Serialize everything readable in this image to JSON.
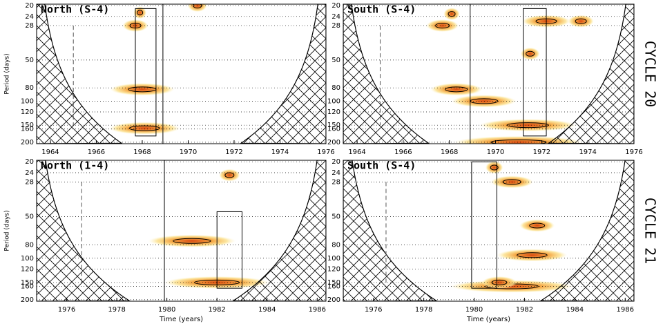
{
  "chart_data": [
    {
      "type": "wavelet",
      "label": "North (S-4)",
      "ylabel": "Period (days)",
      "xlim": [
        1963.4,
        1976
      ],
      "ylim": [
        19.5,
        205
      ],
      "log_y": true,
      "xticks": [
        1964,
        1966,
        1968,
        1970,
        1972,
        1974,
        1976
      ],
      "yticks": [
        20,
        24,
        28,
        50,
        80,
        100,
        120,
        150,
        160,
        200
      ],
      "x": [
        1967.9,
        1967.7,
        1968.0,
        1968.1,
        1970.4
      ],
      "y": [
        22.5,
        28,
        82,
        158,
        20
      ],
      "span": [
        0.4,
        0.8,
        2.0,
        2.2,
        0.6
      ],
      "vlines": [
        1968.9
      ],
      "dashed": [
        1965
      ],
      "boxes": [
        {
          "x": [
            1967.7,
            1968.6
          ],
          "y": [
            21,
            180
          ]
        }
      ]
    },
    {
      "type": "wavelet",
      "label": "South (S-4)",
      "xlim": [
        1963.4,
        1976
      ],
      "ylim": [
        19.5,
        205
      ],
      "log_y": true,
      "xticks": [
        1964,
        1966,
        1968,
        1970,
        1972,
        1974,
        1976
      ],
      "yticks": [
        20,
        24,
        28,
        50,
        80,
        100,
        120,
        150,
        160,
        200
      ],
      "x": [
        1968.1,
        1967.7,
        1968.3,
        1971.5,
        1972.2,
        1973.7,
        1971.4,
        1971.0,
        1969.5
      ],
      "y": [
        23,
        28,
        82,
        45,
        26,
        26,
        150,
        200,
        100
      ],
      "span": [
        0.5,
        1.0,
        1.6,
        0.6,
        1.5,
        0.8,
        3.0,
        4.0,
        2.0
      ],
      "vlines": [
        1968.9
      ],
      "dashed": [
        1965
      ],
      "boxes": [
        {
          "x": [
            1971.2,
            1972.2
          ],
          "y": [
            21,
            180
          ]
        }
      ]
    },
    {
      "type": "wavelet",
      "label": "North (1-4)",
      "ylabel": "Period (days)",
      "xlabel": "Time (years)",
      "xlim": [
        1974.8,
        1986.35
      ],
      "ylim": [
        19.5,
        205
      ],
      "log_y": true,
      "xticks": [
        1976,
        1978,
        1980,
        1982,
        1984,
        1986
      ],
      "yticks": [
        20,
        24,
        28,
        50,
        80,
        100,
        120,
        150,
        160,
        200
      ],
      "x": [
        1982.5,
        1981.0,
        1982.0
      ],
      "y": [
        25,
        75,
        150
      ],
      "span": [
        0.6,
        2.5,
        3.0
      ],
      "vlines": [
        1979.9
      ],
      "dashed": [
        1976.6
      ],
      "boxes": [
        {
          "x": [
            1982.0,
            1983.0
          ],
          "y": [
            46,
            165
          ]
        }
      ]
    },
    {
      "type": "wavelet",
      "label": "South (S-4)",
      "xlabel": "Time (years)",
      "xlim": [
        1974.8,
        1986.35
      ],
      "ylim": [
        19.5,
        205
      ],
      "log_y": true,
      "xticks": [
        1976,
        1978,
        1980,
        1982,
        1984,
        1986
      ],
      "yticks": [
        20,
        24,
        28,
        50,
        80,
        100,
        120,
        150,
        160,
        200
      ],
      "x": [
        1980.8,
        1981.5,
        1982.5,
        1982.3,
        1981.5,
        1981.0
      ],
      "y": [
        22,
        28,
        58,
        95,
        160,
        150
      ],
      "span": [
        0.5,
        1.2,
        1.0,
        2.0,
        3.5,
        1.0
      ],
      "vlines": [],
      "dashed": [
        1976.5
      ],
      "boxes": [
        {
          "x": [
            1979.9,
            1980.9
          ],
          "y": [
            20,
            165
          ]
        }
      ]
    }
  ],
  "cycles": [
    "CYCLE 20",
    "CYCLE 21"
  ]
}
